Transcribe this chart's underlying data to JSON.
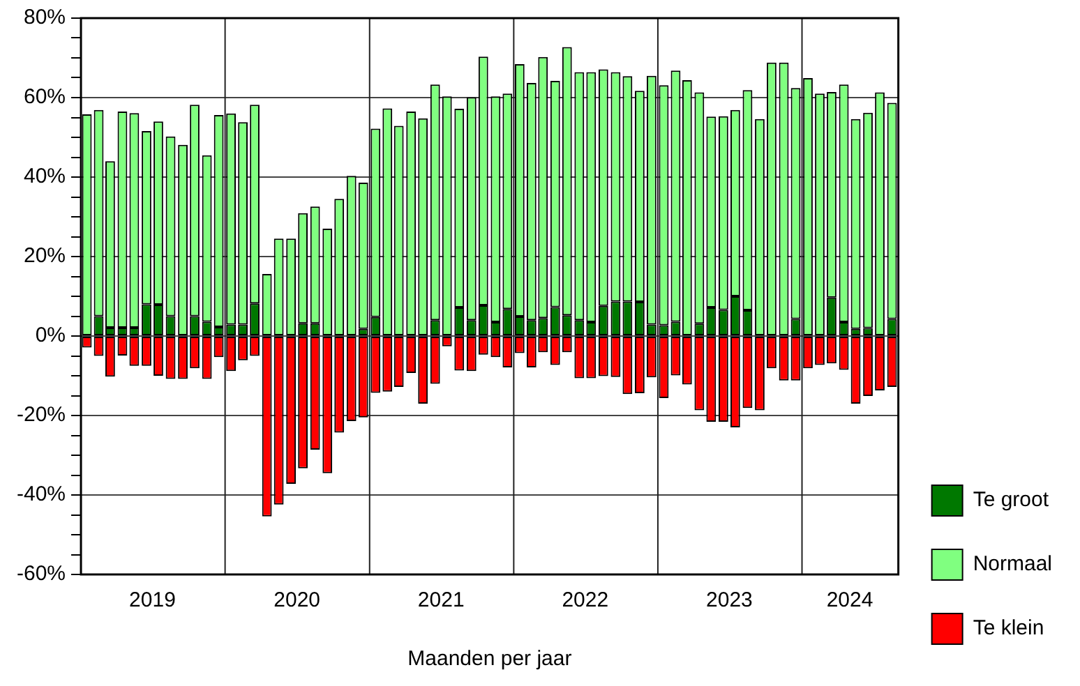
{
  "chart_data": {
    "type": "bar",
    "stacked": true,
    "xlabel": "Maanden per jaar",
    "legend": "right",
    "grid": "y",
    "x": [
      "2019-01-16",
      "2019-02-15",
      "2019-03-16",
      "2019-04-16",
      "2019-05-16",
      "2019-06-16",
      "2019-07-16",
      "2019-08-16",
      "2019-09-16",
      "2019-10-16",
      "2019-11-16",
      "2019-12-16",
      "2020-01-16",
      "2020-02-15",
      "2020-03-16",
      "2020-04-16",
      "2020-05-16",
      "2020-06-16",
      "2020-07-16",
      "2020-08-16",
      "2020-09-16",
      "2020-10-16",
      "2020-11-16",
      "2020-12-16",
      "2021-01-16",
      "2021-02-15",
      "2021-03-16",
      "2021-04-16",
      "2021-05-16",
      "2021-06-16",
      "2021-07-16",
      "2021-08-16",
      "2021-09-16",
      "2021-10-16",
      "2021-11-16",
      "2021-12-16",
      "2022-01-16",
      "2022-02-15",
      "2022-03-16",
      "2022-04-16",
      "2022-05-16",
      "2022-06-16",
      "2022-07-16",
      "2022-08-16",
      "2022-09-16",
      "2022-10-16",
      "2022-11-16",
      "2022-12-16",
      "2023-01-16",
      "2023-02-15",
      "2023-03-16",
      "2023-04-16",
      "2023-05-16",
      "2023-06-16",
      "2023-07-16",
      "2023-08-16",
      "2023-09-16",
      "2023-10-16",
      "2023-11-16",
      "2023-12-16",
      "2024-01-16",
      "2024-02-15",
      "2024-03-16",
      "2024-04-16",
      "2024-05-16",
      "2024-06-16",
      "2024-07-16",
      "2024-08-16"
    ],
    "xlim": [
      "2019-01-01",
      "2024-09-01"
    ],
    "xticks": [
      {
        "value": "2019-07-01",
        "label": "2019"
      },
      {
        "value": "2020-07-01",
        "label": "2020"
      },
      {
        "value": "2021-07-01",
        "label": "2021"
      },
      {
        "value": "2022-07-01",
        "label": "2022"
      },
      {
        "value": "2023-07-01",
        "label": "2023"
      },
      {
        "value": "2024-05-01",
        "label": "2024"
      }
    ],
    "ref_lines": [
      {
        "axis": "x",
        "value": "2020-01-01"
      },
      {
        "axis": "x",
        "value": "2021-01-01"
      },
      {
        "axis": "x",
        "value": "2022-01-01"
      },
      {
        "axis": "x",
        "value": "2023-01-01"
      },
      {
        "axis": "x",
        "value": "2024-01-01"
      }
    ],
    "ylim": [
      -60,
      80
    ],
    "yticks": [
      {
        "value": -60,
        "label": "-60%"
      },
      {
        "value": -55,
        "label": null
      },
      {
        "value": -50,
        "label": null
      },
      {
        "value": -45,
        "label": null
      },
      {
        "value": -40,
        "label": "-40%"
      },
      {
        "value": -35,
        "label": null
      },
      {
        "value": -30,
        "label": null
      },
      {
        "value": -25,
        "label": null
      },
      {
        "value": -20,
        "label": "-20%"
      },
      {
        "value": -15,
        "label": null
      },
      {
        "value": -10,
        "label": null
      },
      {
        "value": -5,
        "label": null
      },
      {
        "value": 0,
        "label": "0%"
      },
      {
        "value": 5,
        "label": null
      },
      {
        "value": 10,
        "label": null
      },
      {
        "value": 15,
        "label": null
      },
      {
        "value": 20,
        "label": "20%"
      },
      {
        "value": 25,
        "label": null
      },
      {
        "value": 30,
        "label": null
      },
      {
        "value": 35,
        "label": null
      },
      {
        "value": 40,
        "label": "40%"
      },
      {
        "value": 45,
        "label": null
      },
      {
        "value": 50,
        "label": null
      },
      {
        "value": 55,
        "label": null
      },
      {
        "value": 60,
        "label": "60%"
      },
      {
        "value": 65,
        "label": null
      },
      {
        "value": 70,
        "label": null
      },
      {
        "value": 75,
        "label": null
      },
      {
        "value": 80,
        "label": "80%"
      }
    ],
    "series": [
      {
        "name": "Te groot",
        "color": "#007800",
        "values": [
          null,
          5.0,
          2.1,
          2.1,
          2.1,
          8.0,
          7.9,
          5.0,
          null,
          5.0,
          3.6,
          2.3,
          2.9,
          2.9,
          8.2,
          null,
          null,
          null,
          3.2,
          3.2,
          null,
          null,
          null,
          1.8,
          4.8,
          null,
          null,
          null,
          null,
          4.0,
          null,
          7.2,
          4.0,
          7.7,
          3.5,
          6.8,
          4.9,
          4.0,
          4.5,
          7.3,
          5.2,
          4.0,
          3.5,
          7.6,
          8.7,
          8.7,
          8.6,
          2.9,
          2.7,
          3.6,
          null,
          3.1,
          7.2,
          6.6,
          10.0,
          6.5,
          null,
          null,
          null,
          4.3,
          null,
          null,
          9.7,
          3.5,
          1.8,
          2.0,
          null,
          4.3
        ]
      },
      {
        "name": "Normaal",
        "color": "#80ff80",
        "values": [
          55.8,
          51.9,
          41.9,
          54.4,
          54.0,
          43.6,
          46.1,
          45.2,
          48.1,
          53.2,
          41.9,
          53.3,
          53.1,
          50.9,
          50.0,
          15.6,
          24.5,
          24.5,
          27.7,
          29.4,
          27.0,
          34.5,
          40.3,
          36.8,
          47.4,
          57.3,
          52.9,
          56.5,
          54.8,
          59.3,
          60.3,
          50.0,
          56.1,
          62.6,
          56.8,
          54.2,
          63.5,
          59.7,
          65.7,
          56.9,
          67.5,
          62.4,
          62.9,
          59.5,
          57.7,
          56.7,
          53.1,
          62.6,
          60.4,
          63.2,
          64.4,
          58.2,
          48.0,
          48.7,
          46.9,
          55.4,
          54.6,
          68.8,
          68.8,
          58.1,
          64.9,
          61.0,
          51.7,
          59.8,
          52.8,
          54.2,
          61.3,
          54.4
        ]
      },
      {
        "name": "Te klein",
        "color": "#ff0000",
        "values": [
          -2.9,
          -5.0,
          -10.2,
          -4.9,
          -7.5,
          -7.5,
          -10.0,
          -10.8,
          -10.8,
          -8.1,
          -10.8,
          -5.3,
          -8.8,
          -6.1,
          -5.0,
          -45.4,
          -42.4,
          -37.2,
          -33.3,
          -28.6,
          -34.5,
          -24.3,
          -21.4,
          -20.5,
          -14.3,
          -14.0,
          -12.8,
          -9.3,
          -17.0,
          -12.0,
          -2.6,
          -8.7,
          -8.8,
          -4.7,
          -5.3,
          -7.9,
          -4.3,
          -7.9,
          -4.1,
          -7.3,
          -4.1,
          -10.6,
          -10.6,
          -10.1,
          -10.3,
          -14.6,
          -14.4,
          -10.4,
          -15.6,
          -9.9,
          -12.2,
          -18.7,
          -21.6,
          -21.6,
          -23.0,
          -18.1,
          -18.7,
          -8.1,
          -11.2,
          -11.2,
          -8.1,
          -7.3,
          -6.9,
          -8.5,
          -17.0,
          -15.1,
          -13.7,
          -12.8
        ]
      }
    ]
  }
}
